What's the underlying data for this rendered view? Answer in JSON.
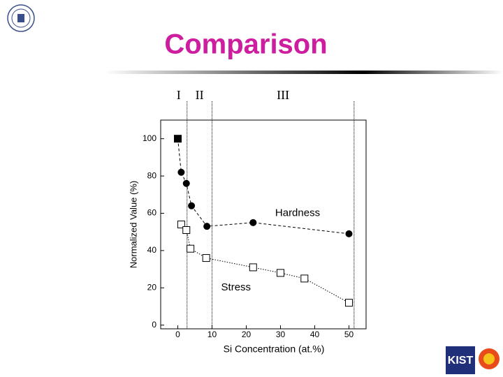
{
  "title": "Comparison",
  "chart_data": {
    "type": "scatter-line",
    "xlabel": "Si Concentration (at.%)",
    "ylabel": "Normalized Value (%)",
    "xlim": [
      -5,
      55
    ],
    "ylim": [
      -2,
      110
    ],
    "xticks": [
      0,
      10,
      20,
      30,
      40,
      50
    ],
    "yticks": [
      0,
      20,
      40,
      60,
      80,
      100
    ],
    "regions": [
      "I",
      "II",
      "III"
    ],
    "region_bounds": [
      2.7,
      10,
      51.5
    ],
    "series": [
      {
        "name": "Hardness",
        "color": "#000000",
        "line": "dashed",
        "markers": [
          "filled-square",
          "filled-circle",
          "filled-circle",
          "filled-circle",
          "filled-circle",
          "filled-circle",
          "filled-circle"
        ],
        "x": [
          0,
          1,
          2.5,
          4,
          8.5,
          22,
          50
        ],
        "values": [
          100,
          82,
          76,
          64,
          53,
          55,
          49
        ]
      },
      {
        "name": "Stress",
        "color": "#000000",
        "line": "dotted",
        "markers": [
          "open-square",
          "open-square",
          "open-square",
          "open-square",
          "open-square",
          "open-square",
          "open-square",
          "open-square"
        ],
        "x": [
          1,
          2.5,
          3.7,
          8.3,
          22,
          30,
          37,
          50
        ],
        "values": [
          54,
          51,
          41,
          36,
          31,
          28,
          25,
          12
        ]
      }
    ]
  }
}
